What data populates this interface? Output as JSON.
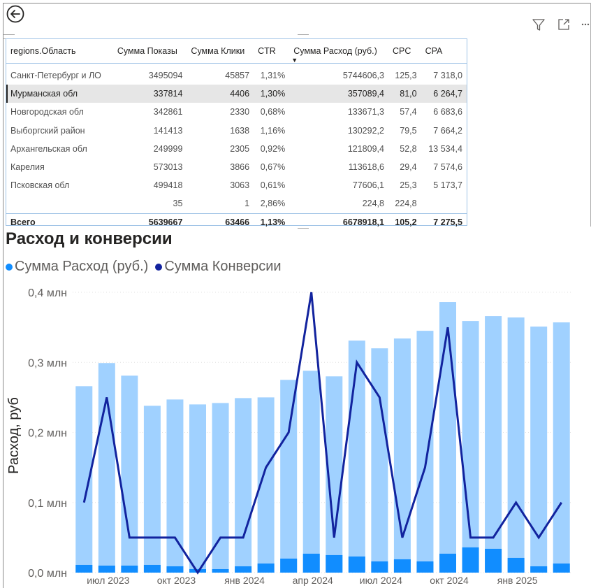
{
  "toolbar": {
    "icons": [
      "back-arrow-icon",
      "filter-icon",
      "focus-mode-icon",
      "more-options-icon"
    ]
  },
  "table": {
    "columns": [
      "regions.Область",
      "Сумма Показы",
      "Сумма Клики",
      "CTR",
      "Сумма Расход (руб.)",
      "CPC",
      "CPA"
    ],
    "rows": [
      [
        "Санкт-Петербург и ЛО",
        "3495094",
        "45857",
        "1,31%",
        "5744606,3",
        "125,3",
        "7 318,0"
      ],
      [
        "Мурманская обл",
        "337814",
        "4406",
        "1,30%",
        "357089,4",
        "81,0",
        "6 264,7"
      ],
      [
        "Новгородская обл",
        "342861",
        "2330",
        "0,68%",
        "133671,3",
        "57,4",
        "6 683,6"
      ],
      [
        "Выборгский район",
        "141413",
        "1638",
        "1,16%",
        "130292,2",
        "79,5",
        "7 664,2"
      ],
      [
        "Архангельская обл",
        "249999",
        "2305",
        "0,92%",
        "121809,4",
        "52,8",
        "13 534,4"
      ],
      [
        "Карелия",
        "573013",
        "3866",
        "0,67%",
        "113618,6",
        "29,4",
        "7 574,6"
      ],
      [
        "Псковская обл",
        "499418",
        "3063",
        "0,61%",
        "77606,1",
        "25,3",
        "5 173,7"
      ],
      [
        "",
        "35",
        "1",
        "2,86%",
        "224,8",
        "224,8",
        ""
      ]
    ],
    "total": [
      "Всего",
      "5639667",
      "63466",
      "1,13%",
      "6678918,1",
      "105,2",
      "7 275,5"
    ],
    "selected_row": 1
  },
  "chart_title": "Расход и конверсии",
  "legend": [
    {
      "name": "Сумма Расход (руб.)",
      "color": "#118dff"
    },
    {
      "name": "Сумма Конверсии",
      "color": "#12239e"
    }
  ],
  "chart_data": {
    "type": "bar",
    "x": [
      "2023-06",
      "2023-07",
      "2023-08",
      "2023-09",
      "2023-10",
      "2023-11",
      "2023-12",
      "2024-01",
      "2024-02",
      "2024-03",
      "2024-04",
      "2024-05",
      "2024-06",
      "2024-07",
      "2024-08",
      "2024-09",
      "2024-10",
      "2024-11",
      "2024-12",
      "2025-01",
      "2025-02",
      "2025-03"
    ],
    "x_tick_labels": [
      "июл 2023",
      "окт 2023",
      "янв 2024",
      "апр 2024",
      "июл 2024",
      "окт 2024",
      "янв 2025"
    ],
    "x_tick_dates": [
      "2023-07",
      "2023-10",
      "2024-01",
      "2024-04",
      "2024-07",
      "2024-10",
      "2025-01"
    ],
    "ylabel": "Расход, руб",
    "y_ticks": [
      "0,0 млн",
      "0,1 млн",
      "0,2 млн",
      "0,3 млн",
      "0,4 млн"
    ],
    "ylim": [
      0,
      0.42
    ],
    "series": [
      {
        "name": "Сумма Расход (руб.)",
        "color": "#a0d1ff",
        "values": [
          0.266,
          0.299,
          0.281,
          0.238,
          0.247,
          0.24,
          0.242,
          0.249,
          0.25,
          0.275,
          0.288,
          0.28,
          0.331,
          0.32,
          0.334,
          0.345,
          0.386,
          0.359,
          0.366,
          0.364,
          0.351,
          0.357
        ]
      },
      {
        "name": "",
        "color": "#118dff",
        "values": [
          0.011,
          0.01,
          0.01,
          0.011,
          0.009,
          0.005,
          0.005,
          0.009,
          0.013,
          0.02,
          0.027,
          0.025,
          0.023,
          0.016,
          0.019,
          0.016,
          0.027,
          0.036,
          0.034,
          0.021,
          0.009,
          0.013
        ]
      },
      {
        "name": "Сумма Конверсии",
        "type": "line",
        "color": "#12239e",
        "values": [
          0.1,
          0.25,
          0.05,
          0.05,
          0.05,
          0.0,
          0.05,
          0.05,
          0.15,
          0.2,
          0.4,
          0.05,
          0.3,
          0.25,
          0.05,
          0.15,
          0.35,
          0.05,
          0.05,
          0.1,
          0.05,
          0.1
        ]
      }
    ]
  }
}
